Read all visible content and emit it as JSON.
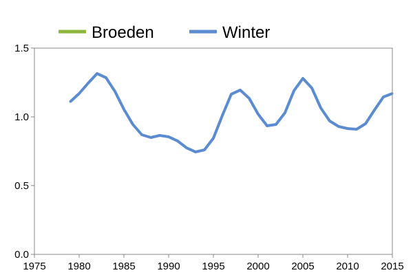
{
  "chart_data": {
    "type": "line",
    "title": "",
    "xlabel": "",
    "ylabel": "",
    "xlim": [
      1975,
      2015
    ],
    "ylim": [
      0.0,
      1.5
    ],
    "x_ticks": [
      1975,
      1980,
      1985,
      1990,
      1995,
      2000,
      2005,
      2010,
      2015
    ],
    "x_tick_labels": [
      "1975",
      "1980",
      "1985",
      "1990",
      "1995",
      "2000",
      "2005",
      "2010",
      "2015"
    ],
    "y_ticks": [
      0.0,
      0.5,
      1.0,
      1.5
    ],
    "y_tick_labels": [
      "0.0",
      "0.5",
      "1.0",
      "1.5"
    ],
    "grid": false,
    "legend_position": "top",
    "series": [
      {
        "name": "Broeden",
        "color": "#8DB63C",
        "x": [],
        "values": []
      },
      {
        "name": "Winter",
        "color": "#5B8BD1",
        "x": [
          1979,
          1980,
          1981,
          1982,
          1983,
          1984,
          1985,
          1986,
          1987,
          1988,
          1989,
          1990,
          1991,
          1992,
          1993,
          1994,
          1995,
          1996,
          1997,
          1998,
          1999,
          2000,
          2001,
          2002,
          2003,
          2004,
          2005,
          2006,
          2007,
          2008,
          2009,
          2010,
          2011,
          2012,
          2013,
          2014,
          2015
        ],
        "values": [
          1.11,
          1.17,
          1.245,
          1.315,
          1.285,
          1.185,
          1.055,
          0.945,
          0.87,
          0.85,
          0.865,
          0.855,
          0.825,
          0.775,
          0.745,
          0.76,
          0.845,
          1.01,
          1.165,
          1.195,
          1.135,
          1.02,
          0.935,
          0.945,
          1.03,
          1.19,
          1.28,
          1.21,
          1.065,
          0.97,
          0.93,
          0.915,
          0.91,
          0.95,
          1.05,
          1.145,
          1.17
        ]
      }
    ]
  }
}
